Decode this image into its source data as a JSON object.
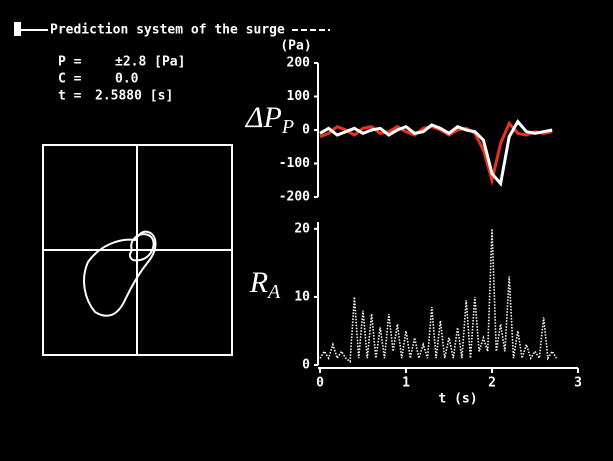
{
  "screen": {
    "title": "Prediction system of the surge",
    "readouts": [
      {
        "name": "P =",
        "value": "±2.8 [Pa]"
      },
      {
        "name": "C =",
        "value": "0.0"
      },
      {
        "name": "t =",
        "value": "2.5880 [s]"
      }
    ]
  },
  "chart_data": [
    {
      "type": "line",
      "y_label": {
        "main": "ΔP",
        "sub": "P"
      },
      "y_unit": "(Pa)",
      "xlim": [
        0,
        3
      ],
      "ylim": [
        -200,
        200
      ],
      "yticks": [
        -200,
        -100,
        0,
        100,
        200
      ],
      "x": [
        0,
        0.1,
        0.2,
        0.3,
        0.4,
        0.5,
        0.6,
        0.7,
        0.8,
        0.9,
        1.0,
        1.1,
        1.2,
        1.3,
        1.4,
        1.5,
        1.6,
        1.7,
        1.8,
        1.9,
        2.0,
        2.1,
        2.2,
        2.3,
        2.4,
        2.5,
        2.6,
        2.7
      ],
      "series": [
        {
          "color": "#e8331e",
          "values": [
            -20,
            -10,
            10,
            0,
            -15,
            5,
            10,
            -10,
            -5,
            10,
            -5,
            -15,
            5,
            10,
            0,
            -15,
            0,
            5,
            -10,
            -60,
            -150,
            -40,
            20,
            -10,
            -15,
            -5,
            -10,
            -5
          ]
        },
        {
          "color": "#ffffff",
          "values": [
            -10,
            5,
            -15,
            -5,
            5,
            -10,
            0,
            5,
            -15,
            0,
            10,
            -10,
            -5,
            15,
            5,
            -10,
            10,
            0,
            -5,
            -30,
            -130,
            -160,
            -20,
            25,
            -5,
            -10,
            -5,
            0
          ]
        }
      ]
    },
    {
      "type": "line",
      "y_label": {
        "main": "R",
        "sub": "A"
      },
      "x_label": "t (s)",
      "xlim": [
        0,
        3
      ],
      "xticks": [
        0,
        1,
        2,
        3
      ],
      "ylim": [
        0,
        21
      ],
      "yticks": [
        0,
        10,
        20
      ],
      "x": [
        0,
        0.05,
        0.1,
        0.15,
        0.2,
        0.25,
        0.3,
        0.35,
        0.4,
        0.45,
        0.5,
        0.55,
        0.6,
        0.65,
        0.7,
        0.75,
        0.8,
        0.85,
        0.9,
        0.95,
        1.0,
        1.05,
        1.1,
        1.15,
        1.2,
        1.25,
        1.3,
        1.35,
        1.4,
        1.45,
        1.5,
        1.55,
        1.6,
        1.65,
        1.7,
        1.75,
        1.8,
        1.85,
        1.9,
        1.95,
        2.0,
        2.05,
        2.1,
        2.15,
        2.2,
        2.25,
        2.3,
        2.35,
        2.4,
        2.45,
        2.5,
        2.55,
        2.6,
        2.65,
        2.7,
        2.75
      ],
      "series": [
        {
          "color": "#ffffff",
          "values": [
            1,
            2,
            1,
            3,
            1,
            2,
            1,
            0.5,
            10,
            1,
            8,
            1,
            7.5,
            1,
            5.5,
            1,
            7.5,
            2,
            6,
            1,
            5,
            1,
            4,
            1,
            3,
            1,
            8.5,
            1,
            6.5,
            1,
            4,
            1,
            5.5,
            1,
            9.5,
            1,
            10,
            2,
            4,
            2,
            20,
            2,
            6,
            2,
            13,
            1,
            5,
            1,
            3,
            1,
            2,
            1,
            7,
            1,
            2,
            1
          ]
        }
      ]
    }
  ]
}
